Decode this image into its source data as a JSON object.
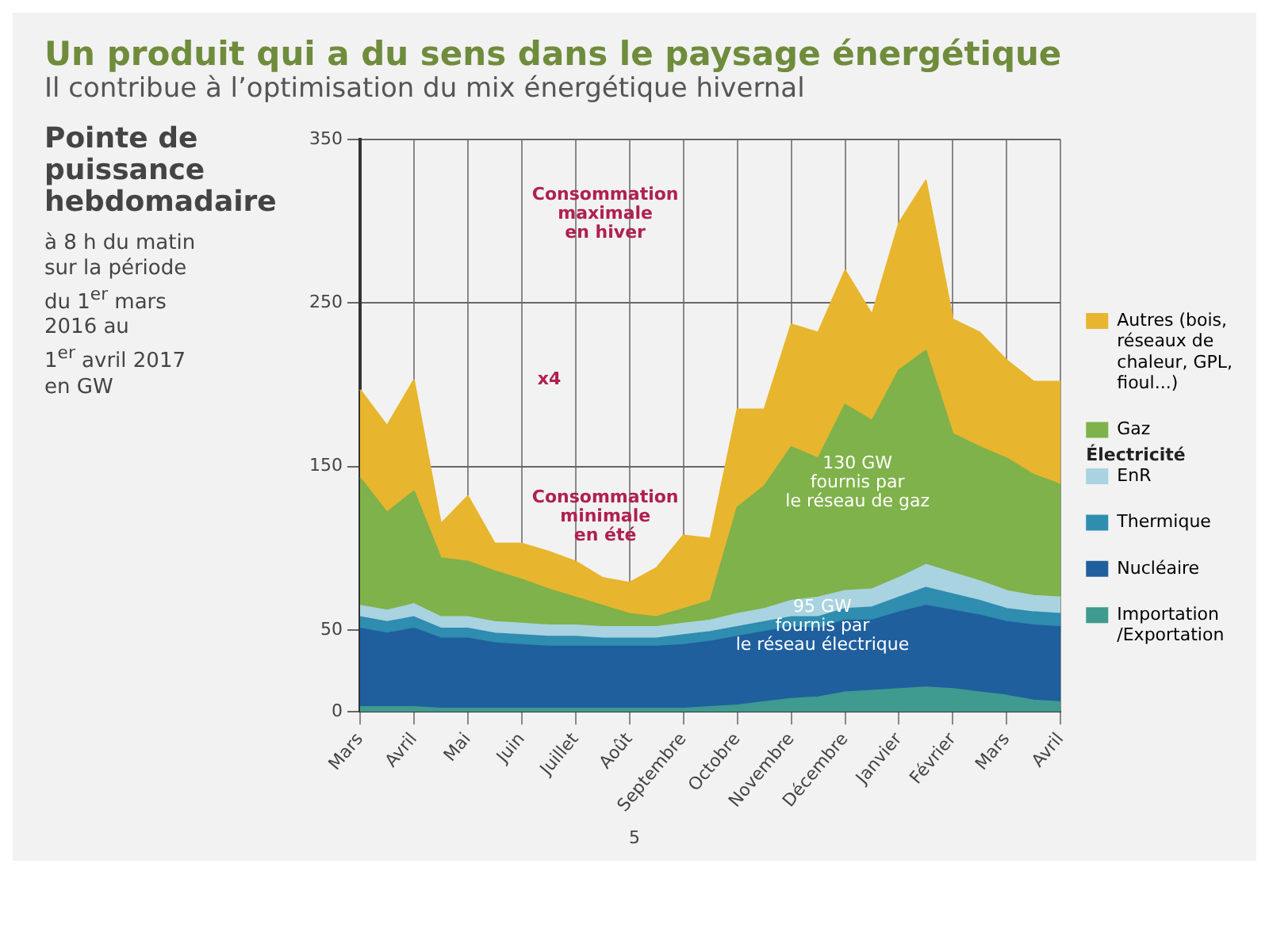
{
  "chart_data": {
    "type": "area",
    "title": "Un produit qui a du sens dans le paysage énergétique",
    "subtitle": "Il contribue à l’optimisation du mix énergétique hivernal",
    "categories": [
      "Mars",
      null,
      "Avril",
      null,
      "Mai",
      null,
      "Juin",
      null,
      "Juillet",
      null,
      "Août",
      null,
      "Septembre",
      null,
      "Octobre",
      null,
      "Novembre",
      null,
      "Décembre",
      null,
      "Janvier",
      null,
      "Février",
      null,
      "Mars",
      null,
      "Avril"
    ],
    "stacked": true,
    "series": [
      {
        "name": "Importation /Exportation",
        "color": "#3f9a8f",
        "values": [
          3,
          3,
          3,
          2,
          2,
          2,
          2,
          2,
          2,
          2,
          2,
          2,
          2,
          3,
          4,
          6,
          8,
          9,
          12,
          13,
          14,
          15,
          14,
          12,
          10,
          7,
          6
        ]
      },
      {
        "name": "Nucléaire",
        "color": "#1f5f9e",
        "values": [
          48,
          45,
          48,
          43,
          43,
          40,
          39,
          38,
          38,
          38,
          38,
          38,
          39,
          40,
          42,
          43,
          44,
          42,
          44,
          43,
          47,
          50,
          48,
          47,
          45,
          46,
          46
        ]
      },
      {
        "name": "Thermique",
        "color": "#2f8db0",
        "values": [
          7,
          7,
          7,
          6,
          6,
          6,
          6,
          6,
          6,
          5,
          5,
          5,
          6,
          6,
          6,
          6,
          6,
          7,
          7,
          8,
          9,
          11,
          10,
          9,
          8,
          8,
          8
        ]
      },
      {
        "name": "EnR",
        "color": "#a9d3e0",
        "values": [
          7,
          7,
          8,
          7,
          7,
          7,
          7,
          7,
          7,
          7,
          7,
          7,
          7,
          7,
          8,
          8,
          10,
          12,
          11,
          11,
          12,
          14,
          13,
          12,
          11,
          10,
          10
        ]
      },
      {
        "name": "Gaz",
        "color": "#7fb24a",
        "values": [
          78,
          60,
          69,
          36,
          34,
          31,
          27,
          22,
          17,
          13,
          8,
          6,
          9,
          12,
          65,
          75,
          94,
          85,
          114,
          103,
          127,
          131,
          85,
          82,
          81,
          74,
          69
        ]
      },
      {
        "name": "Autres (bois, réseaux de chaleur, GPL, fioul...)",
        "color": "#e8b52e",
        "values": [
          54,
          53,
          68,
          21,
          40,
          17,
          22,
          23,
          22,
          17,
          19,
          30,
          45,
          38,
          60,
          47,
          75,
          77,
          82,
          65,
          90,
          104,
          70,
          70,
          60,
          57,
          63
        ]
      }
    ],
    "ylim": [
      0,
      350
    ],
    "yticks": [
      0,
      50,
      150,
      250,
      350
    ],
    "grid": true,
    "legend": "right",
    "annotations": [
      "Pointe de puissance\nhebdomadaire",
      "à 8 h du matin\nsur la période\ndu 1$^{er}$ mars\n2016 au\n1$^{er}$ avril 2017\nen GW",
      "Électricité",
      "5",
      "Consommation\nmaximale\nen hiver",
      "x4",
      "Consommation\nminimale\nen été",
      "130 GW\nfournis par\nle réseau de gaz",
      "95 GW\nfournis par\nle réseau électrique"
    ]
  }
}
